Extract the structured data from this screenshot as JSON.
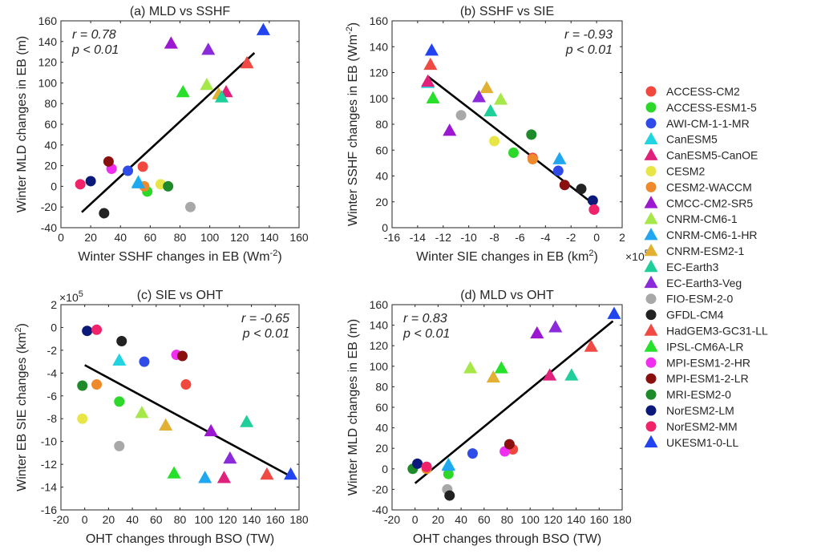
{
  "models": [
    {
      "name": "ACCESS-CM2",
      "color": "#f0483e",
      "marker": "circle"
    },
    {
      "name": "ACCESS-ESM1-5",
      "color": "#2ed82a",
      "marker": "circle"
    },
    {
      "name": "AWI-CM-1-1-MR",
      "color": "#2f4be8",
      "marker": "circle"
    },
    {
      "name": "CanESM5",
      "color": "#22d3e0",
      "marker": "triangle"
    },
    {
      "name": "CanESM5-CanOE",
      "color": "#e0217b",
      "marker": "triangle"
    },
    {
      "name": "CESM2",
      "color": "#e8e546",
      "marker": "circle"
    },
    {
      "name": "CESM2-WACCM",
      "color": "#ef8a2c",
      "marker": "circle"
    },
    {
      "name": "CMCC-CM2-SR5",
      "color": "#9b17d0",
      "marker": "triangle"
    },
    {
      "name": "CNRM-CM6-1",
      "color": "#a6e84a",
      "marker": "triangle"
    },
    {
      "name": "CNRM-CM6-1-HR",
      "color": "#20a7f0",
      "marker": "triangle"
    },
    {
      "name": "CNRM-ESM2-1",
      "color": "#e2b033",
      "marker": "triangle"
    },
    {
      "name": "EC-Earth3",
      "color": "#1fcf9b",
      "marker": "triangle"
    },
    {
      "name": "EC-Earth3-Veg",
      "color": "#8a2ad8",
      "marker": "triangle"
    },
    {
      "name": "FIO-ESM-2-0",
      "color": "#a8a8a8",
      "marker": "circle"
    },
    {
      "name": "GFDL-CM4",
      "color": "#222222",
      "marker": "circle"
    },
    {
      "name": "HadGEM3-GC31-LL",
      "color": "#f04a44",
      "marker": "triangle"
    },
    {
      "name": "IPSL-CM6A-LR",
      "color": "#26e02c",
      "marker": "triangle"
    },
    {
      "name": "MPI-ESM1-2-HR",
      "color": "#f02ef0",
      "marker": "circle"
    },
    {
      "name": "MPI-ESM1-2-LR",
      "color": "#8a1010",
      "marker": "circle"
    },
    {
      "name": "MRI-ESM2-0",
      "color": "#1f8a2a",
      "marker": "circle"
    },
    {
      "name": "NorESM2-LM",
      "color": "#0b1a7a",
      "marker": "circle"
    },
    {
      "name": "NorESM2-MM",
      "color": "#f0226a",
      "marker": "circle"
    },
    {
      "name": "UKESM1-0-LL",
      "color": "#2244f0",
      "marker": "triangle"
    }
  ],
  "chart_data": [
    {
      "type": "scatter",
      "title": "(a) MLD vs SSHF",
      "xlabel": "Winter SSHF changes in EB (Wm",
      "xlabel_sup": "-2",
      "xlabel_tail": ")",
      "ylabel": "Winter MLD changes in EB (m)",
      "xlim": [
        0,
        160
      ],
      "ylim": [
        -40,
        160
      ],
      "xticks": [
        0,
        20,
        40,
        60,
        80,
        100,
        120,
        140,
        160
      ],
      "yticks": [
        -40,
        -20,
        0,
        20,
        40,
        60,
        80,
        100,
        120,
        140,
        160
      ],
      "r_text": "r = 0.78",
      "p_text": "p < 0.01",
      "stats_pos": "top-left",
      "fit": [
        [
          14,
          -25
        ],
        [
          130,
          129
        ]
      ],
      "points": [
        {
          "model": "ACCESS-CM2",
          "x": 55,
          "y": 19
        },
        {
          "model": "ACCESS-ESM1-5",
          "x": 58,
          "y": -5
        },
        {
          "model": "AWI-CM-1-1-MR",
          "x": 45,
          "y": 15
        },
        {
          "model": "CanESM5",
          "x": 52,
          "y": 4
        },
        {
          "model": "CanESM5-CanOE",
          "x": 111,
          "y": 91
        },
        {
          "model": "CESM2",
          "x": 67,
          "y": 2
        },
        {
          "model": "CESM2-WACCM",
          "x": 56,
          "y": 0
        },
        {
          "model": "CMCC-CM2-SR5",
          "x": 74,
          "y": 138
        },
        {
          "model": "CNRM-CM6-1",
          "x": 98,
          "y": 98
        },
        {
          "model": "CNRM-CM6-1-HR",
          "x": 52,
          "y": 3
        },
        {
          "model": "CNRM-ESM2-1",
          "x": 106,
          "y": 89
        },
        {
          "model": "EC-Earth3",
          "x": 108,
          "y": 86
        },
        {
          "model": "EC-Earth3-Veg",
          "x": 99,
          "y": 132
        },
        {
          "model": "FIO-ESM-2-0",
          "x": 87,
          "y": -20
        },
        {
          "model": "GFDL-CM4",
          "x": 29,
          "y": -26
        },
        {
          "model": "HadGEM3-GC31-LL",
          "x": 125,
          "y": 119
        },
        {
          "model": "IPSL-CM6A-LR",
          "x": 82,
          "y": 91
        },
        {
          "model": "MPI-ESM1-2-HR",
          "x": 34,
          "y": 17
        },
        {
          "model": "MPI-ESM1-2-LR",
          "x": 32,
          "y": 24
        },
        {
          "model": "MRI-ESM2-0",
          "x": 72,
          "y": 0
        },
        {
          "model": "NorESM2-LM",
          "x": 20,
          "y": 5
        },
        {
          "model": "NorESM2-MM",
          "x": 13,
          "y": 2
        },
        {
          "model": "UKESM1-0-LL",
          "x": 136,
          "y": 151
        }
      ]
    },
    {
      "type": "scatter",
      "title": "(b) SSHF vs SIE",
      "xlabel": "Winter SIE changes in EB (km",
      "xlabel_sup": "2",
      "xlabel_tail": ")",
      "xlabel_multiplier": "×10",
      "xlabel_multiplier_exp": "5",
      "ylabel": "Winter SSHF changes in EB (Wm",
      "ylabel_sup": "-2",
      "ylabel_tail": ")",
      "xlim": [
        -16,
        2
      ],
      "ylim": [
        0,
        160
      ],
      "xticks": [
        -16,
        -14,
        -12,
        -10,
        -8,
        -6,
        -4,
        -2,
        0,
        2
      ],
      "yticks": [
        0,
        20,
        40,
        60,
        80,
        100,
        120,
        140,
        160
      ],
      "r_text": "r = -0.93",
      "p_text": "p <  0.01",
      "stats_pos": "top-right",
      "fit": [
        [
          -13.2,
          117
        ],
        [
          -0.2,
          18
        ]
      ],
      "points": [
        {
          "model": "ACCESS-CM2",
          "x": -5,
          "y": 54
        },
        {
          "model": "ACCESS-ESM1-5",
          "x": -6.5,
          "y": 58
        },
        {
          "model": "AWI-CM-1-1-MR",
          "x": -3,
          "y": 44
        },
        {
          "model": "CanESM5",
          "x": -13.2,
          "y": 112
        },
        {
          "model": "CanESM5-CanOE",
          "x": -13.2,
          "y": 113
        },
        {
          "model": "CESM2",
          "x": -8,
          "y": 67
        },
        {
          "model": "CESM2-WACCM",
          "x": -5,
          "y": 53
        },
        {
          "model": "CMCC-CM2-SR5",
          "x": -11.5,
          "y": 75
        },
        {
          "model": "CNRM-CM6-1",
          "x": -7.5,
          "y": 99
        },
        {
          "model": "CNRM-CM6-1-HR",
          "x": -2.9,
          "y": 53
        },
        {
          "model": "CNRM-ESM2-1",
          "x": -8.6,
          "y": 108
        },
        {
          "model": "EC-Earth3",
          "x": -8.3,
          "y": 90
        },
        {
          "model": "EC-Earth3-Veg",
          "x": -9.2,
          "y": 101
        },
        {
          "model": "FIO-ESM-2-0",
          "x": -10.6,
          "y": 87
        },
        {
          "model": "GFDL-CM4",
          "x": -1.2,
          "y": 30
        },
        {
          "model": "HadGEM3-GC31-LL",
          "x": -13,
          "y": 126
        },
        {
          "model": "IPSL-CM6A-LR",
          "x": -12.8,
          "y": 100
        },
        {
          "model": "MPI-ESM1-2-HR",
          "x": -0.2,
          "y": 14
        },
        {
          "model": "MPI-ESM1-2-LR",
          "x": -2.5,
          "y": 33
        },
        {
          "model": "MRI-ESM2-0",
          "x": -5.1,
          "y": 72
        },
        {
          "model": "NorESM2-LM",
          "x": -0.3,
          "y": 21
        },
        {
          "model": "NorESM2-MM",
          "x": -0.2,
          "y": 14
        },
        {
          "model": "UKESM1-0-LL",
          "x": -12.9,
          "y": 137
        }
      ]
    },
    {
      "type": "scatter",
      "title": "(c) SIE vs OHT",
      "xlabel": "OHT changes through BSO (TW)",
      "ylabel": "Winter EB SIE changes (km",
      "ylabel_sup": "2",
      "ylabel_tail": ")",
      "ylabel_multiplier": "×10",
      "ylabel_multiplier_exp": "5",
      "xlim": [
        -20,
        180
      ],
      "ylim": [
        -16,
        2
      ],
      "xticks": [
        -20,
        0,
        20,
        40,
        60,
        80,
        100,
        120,
        140,
        160,
        180
      ],
      "yticks": [
        -16,
        -14,
        -12,
        -10,
        -8,
        -6,
        -4,
        -2,
        0,
        2
      ],
      "r_text": "r = -0.65",
      "p_text": "p <  0.01",
      "stats_pos": "top-right",
      "fit": [
        [
          0,
          -3.3
        ],
        [
          172,
          -13
        ]
      ],
      "points": [
        {
          "model": "ACCESS-CM2",
          "x": 85,
          "y": -5
        },
        {
          "model": "ACCESS-ESM1-5",
          "x": 29,
          "y": -6.5
        },
        {
          "model": "AWI-CM-1-1-MR",
          "x": 50,
          "y": -3
        },
        {
          "model": "CanESM5",
          "x": 29,
          "y": -2.9
        },
        {
          "model": "CanESM5-CanOE",
          "x": 117,
          "y": -13.2
        },
        {
          "model": "CESM2",
          "x": -2,
          "y": -8
        },
        {
          "model": "CESM2-WACCM",
          "x": 10,
          "y": -5
        },
        {
          "model": "CMCC-CM2-SR5",
          "x": 106,
          "y": -9.1
        },
        {
          "model": "CNRM-CM6-1",
          "x": 48,
          "y": -7.5
        },
        {
          "model": "CNRM-CM6-1-HR",
          "x": 101,
          "y": -13.2
        },
        {
          "model": "CNRM-ESM2-1",
          "x": 68,
          "y": -8.6
        },
        {
          "model": "EC-Earth3",
          "x": 136,
          "y": -8.3
        },
        {
          "model": "EC-Earth3-Veg",
          "x": 122,
          "y": -11.5
        },
        {
          "model": "FIO-ESM-2-0",
          "x": 29,
          "y": -10.4
        },
        {
          "model": "GFDL-CM4",
          "x": 31,
          "y": -1.2
        },
        {
          "model": "HadGEM3-GC31-LL",
          "x": 153,
          "y": -12.9
        },
        {
          "model": "IPSL-CM6A-LR",
          "x": 75,
          "y": -12.8
        },
        {
          "model": "MPI-ESM1-2-HR",
          "x": 77,
          "y": -2.4
        },
        {
          "model": "MPI-ESM1-2-LR",
          "x": 82,
          "y": -2.5
        },
        {
          "model": "MRI-ESM2-0",
          "x": -2,
          "y": -5.1
        },
        {
          "model": "NorESM2-LM",
          "x": 2,
          "y": -0.3
        },
        {
          "model": "NorESM2-MM",
          "x": 10,
          "y": -0.2
        },
        {
          "model": "UKESM1-0-LL",
          "x": 173,
          "y": -12.9
        }
      ]
    },
    {
      "type": "scatter",
      "title": "(d) MLD vs OHT",
      "xlabel": "OHT changes through BSO (TW)",
      "ylabel": "Winter MLD changes in EB (m)",
      "xlim": [
        -20,
        180
      ],
      "ylim": [
        -40,
        160
      ],
      "xticks": [
        -20,
        0,
        20,
        40,
        60,
        80,
        100,
        120,
        140,
        160,
        180
      ],
      "yticks": [
        -40,
        -20,
        0,
        20,
        40,
        60,
        80,
        100,
        120,
        140,
        160
      ],
      "r_text": "r = 0.83",
      "p_text": "p < 0.01",
      "stats_pos": "top-left",
      "fit": [
        [
          0,
          -14
        ],
        [
          172,
          144
        ]
      ],
      "points": [
        {
          "model": "ACCESS-CM2",
          "x": 85,
          "y": 19
        },
        {
          "model": "ACCESS-ESM1-5",
          "x": 29,
          "y": -5
        },
        {
          "model": "AWI-CM-1-1-MR",
          "x": 50,
          "y": 15
        },
        {
          "model": "CanESM5",
          "x": 29,
          "y": 4
        },
        {
          "model": "CanESM5-CanOE",
          "x": 117,
          "y": 91
        },
        {
          "model": "CESM2",
          "x": 10,
          "y": 2
        },
        {
          "model": "CESM2-WACCM",
          "x": 10,
          "y": 0
        },
        {
          "model": "CMCC-CM2-SR5",
          "x": 106,
          "y": 132
        },
        {
          "model": "CNRM-CM6-1",
          "x": 48,
          "y": 98
        },
        {
          "model": "CNRM-CM6-1-HR",
          "x": 29,
          "y": 3
        },
        {
          "model": "CNRM-ESM2-1",
          "x": 68,
          "y": 89
        },
        {
          "model": "EC-Earth3",
          "x": 136,
          "y": 91
        },
        {
          "model": "EC-Earth3-Veg",
          "x": 122,
          "y": 138
        },
        {
          "model": "FIO-ESM-2-0",
          "x": 28,
          "y": -20
        },
        {
          "model": "GFDL-CM4",
          "x": 30,
          "y": -26
        },
        {
          "model": "HadGEM3-GC31-LL",
          "x": 153,
          "y": 119
        },
        {
          "model": "IPSL-CM6A-LR",
          "x": 75,
          "y": 98
        },
        {
          "model": "MPI-ESM1-2-HR",
          "x": 78,
          "y": 17
        },
        {
          "model": "MPI-ESM1-2-LR",
          "x": 82,
          "y": 24
        },
        {
          "model": "MRI-ESM2-0",
          "x": -2,
          "y": 0
        },
        {
          "model": "NorESM2-LM",
          "x": 2,
          "y": 5
        },
        {
          "model": "NorESM2-MM",
          "x": 10,
          "y": 2
        },
        {
          "model": "UKESM1-0-LL",
          "x": 173,
          "y": 151
        }
      ]
    }
  ]
}
